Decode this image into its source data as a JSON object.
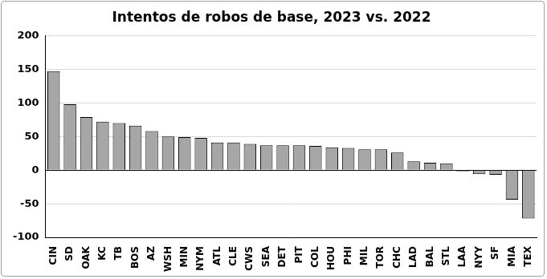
{
  "chart_data": {
    "type": "bar",
    "title": "Intentos de robos de base, 2023 vs. 2022",
    "categories": [
      "CIN",
      "SD",
      "OAK",
      "KC",
      "TB",
      "BOS",
      "AZ",
      "WSH",
      "MIN",
      "NYM",
      "ATL",
      "CLE",
      "CWS",
      "SEA",
      "DET",
      "PIT",
      "COL",
      "HOU",
      "PHI",
      "MIL",
      "TOR",
      "CHC",
      "LAD",
      "BAL",
      "STL",
      "LAA",
      "NYY",
      "SF",
      "MIA",
      "TEX"
    ],
    "values": [
      147,
      98,
      79,
      72,
      70,
      66,
      58,
      50,
      49,
      48,
      41,
      41,
      39,
      37,
      37,
      37,
      36,
      34,
      33,
      31,
      31,
      26,
      13,
      11,
      10,
      -2,
      -6,
      -7,
      -44,
      -72
    ],
    "color": "#a6a6a6",
    "ylim": [
      -100,
      200
    ],
    "yticks": [
      -100,
      -50,
      0,
      50,
      100,
      150,
      200
    ],
    "grid": true
  }
}
